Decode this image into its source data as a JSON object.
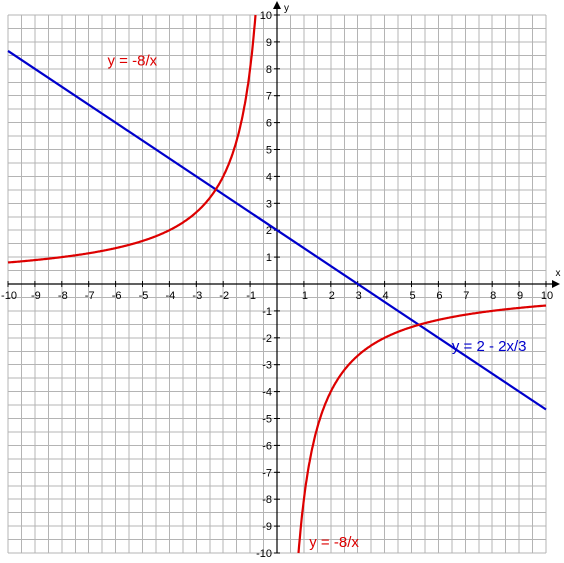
{
  "chart_data": {
    "type": "line",
    "title": "",
    "xlabel": "x",
    "ylabel": "y",
    "xlim": [
      -10,
      10
    ],
    "ylim": [
      -10,
      10
    ],
    "grid": true,
    "grid_step": 0.5,
    "x_ticks": [
      "-10",
      "-9",
      "-8",
      "-7",
      "-6",
      "-5",
      "-4",
      "-3",
      "-2",
      "-1",
      "1",
      "2",
      "3",
      "4",
      "5",
      "6",
      "7",
      "8",
      "9",
      "10"
    ],
    "y_ticks": [
      "10",
      "9",
      "8",
      "7",
      "6",
      "5",
      "4",
      "3",
      "2",
      "1",
      "-1",
      "-2",
      "-3",
      "-4",
      "-5",
      "-6",
      "-7",
      "-8",
      "-9",
      "-10"
    ],
    "series": [
      {
        "name": "y = 2 - 2x/3",
        "color": "#0000cc",
        "x": [
          -10,
          10
        ],
        "y": [
          8.667,
          -4.667
        ]
      },
      {
        "name": "y = -8/x",
        "color": "#dd0000",
        "x": [
          -10,
          -8,
          -6,
          -5,
          -4,
          -3,
          -2.5,
          -2,
          -1.6,
          -1.4,
          -1.2,
          -1,
          -0.9,
          -0.8
        ],
        "y": [
          0.8,
          1,
          1.333,
          1.6,
          2,
          2.667,
          3.2,
          4,
          5,
          5.714,
          6.667,
          8,
          8.889,
          10
        ]
      },
      {
        "name": "y = -8/x",
        "color": "#dd0000",
        "x": [
          0.8,
          0.9,
          1,
          1.2,
          1.4,
          1.6,
          2,
          2.5,
          3,
          4,
          5,
          6,
          8,
          10
        ],
        "y": [
          -10,
          -8.889,
          -8,
          -6.667,
          -5.714,
          -5,
          -4,
          -3.2,
          -2.667,
          -2,
          -1.6,
          -1.333,
          -1,
          -0.8
        ]
      }
    ],
    "annotations": [
      {
        "text": "y = -8/x",
        "color": "#dd0000",
        "x": -6.3,
        "y": 8.3
      },
      {
        "text": "y = -8/x",
        "color": "#dd0000",
        "x": 1.2,
        "y": -9.6
      },
      {
        "text": "y = 2 - 2x/3",
        "color": "#0000cc",
        "x": 6.5,
        "y": -2.3
      }
    ]
  }
}
